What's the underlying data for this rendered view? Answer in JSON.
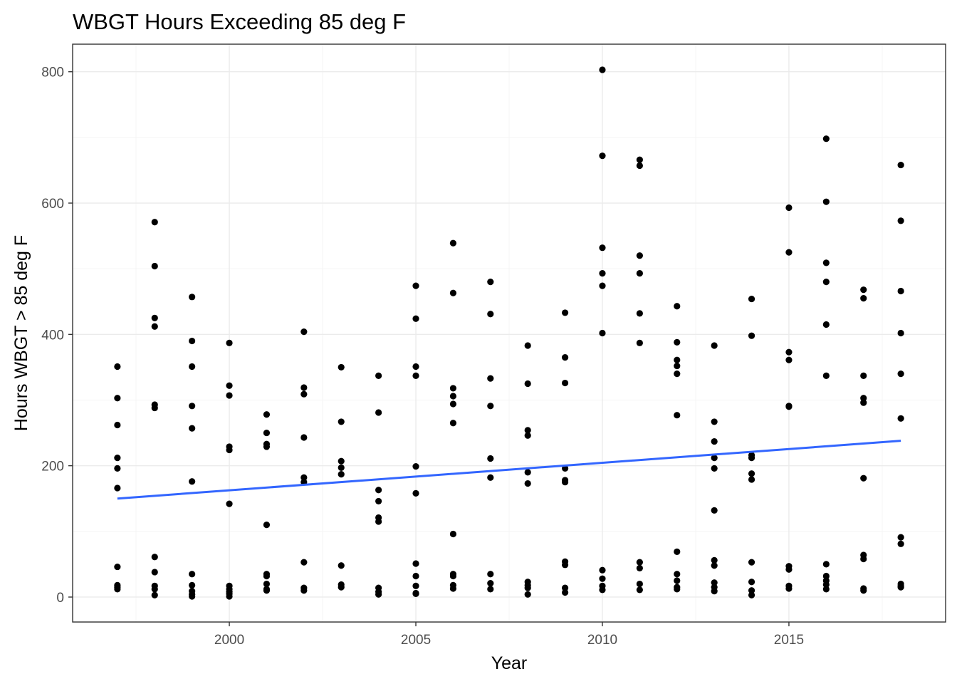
{
  "chart_data": {
    "type": "scatter",
    "title": "WBGT Hours Exceeding 85 deg F",
    "xlabel": "Year",
    "ylabel": "Hours WBGT > 85 deg F",
    "xlim": [
      1995.8,
      2019.2
    ],
    "ylim": [
      -38,
      842
    ],
    "x_ticks": [
      2000,
      2005,
      2010,
      2015
    ],
    "x_tick_labels": [
      "2000",
      "2005",
      "2010",
      "2015"
    ],
    "y_ticks": [
      0,
      200,
      400,
      600,
      800
    ],
    "y_tick_labels": [
      "0",
      "200",
      "400",
      "600",
      "800"
    ],
    "grid": true,
    "legend": "none",
    "colors": {
      "points": "#000000",
      "trend": "#3366ff",
      "grid_major": "#ebebeb",
      "grid_minor": "#f5f5f5",
      "panel_border": "#333333"
    },
    "points": [
      [
        1997,
        351
      ],
      [
        1997,
        303
      ],
      [
        1997,
        262
      ],
      [
        1997,
        212
      ],
      [
        1997,
        196
      ],
      [
        1997,
        166
      ],
      [
        1997,
        46
      ],
      [
        1997,
        18
      ],
      [
        1997,
        15
      ],
      [
        1997,
        12
      ],
      [
        1998,
        571
      ],
      [
        1998,
        504
      ],
      [
        1998,
        425
      ],
      [
        1998,
        412
      ],
      [
        1998,
        293
      ],
      [
        1998,
        288
      ],
      [
        1998,
        61
      ],
      [
        1998,
        38
      ],
      [
        1998,
        17
      ],
      [
        1998,
        12
      ],
      [
        1998,
        3
      ],
      [
        1999,
        457
      ],
      [
        1999,
        390
      ],
      [
        1999,
        351
      ],
      [
        1999,
        291
      ],
      [
        1999,
        257
      ],
      [
        1999,
        176
      ],
      [
        1999,
        35
      ],
      [
        1999,
        18
      ],
      [
        1999,
        9
      ],
      [
        1999,
        4
      ],
      [
        1999,
        1
      ],
      [
        2000,
        387
      ],
      [
        2000,
        322
      ],
      [
        2000,
        307
      ],
      [
        2000,
        229
      ],
      [
        2000,
        224
      ],
      [
        2000,
        142
      ],
      [
        2000,
        17
      ],
      [
        2000,
        12
      ],
      [
        2000,
        8
      ],
      [
        2000,
        5
      ],
      [
        2000,
        1
      ],
      [
        2001,
        278
      ],
      [
        2001,
        250
      ],
      [
        2001,
        233
      ],
      [
        2001,
        229
      ],
      [
        2001,
        110
      ],
      [
        2001,
        35
      ],
      [
        2001,
        32
      ],
      [
        2001,
        20
      ],
      [
        2001,
        12
      ],
      [
        2001,
        10
      ],
      [
        2002,
        404
      ],
      [
        2002,
        319
      ],
      [
        2002,
        309
      ],
      [
        2002,
        243
      ],
      [
        2002,
        182
      ],
      [
        2002,
        175
      ],
      [
        2002,
        53
      ],
      [
        2002,
        14
      ],
      [
        2002,
        10
      ],
      [
        2003,
        350
      ],
      [
        2003,
        267
      ],
      [
        2003,
        207
      ],
      [
        2003,
        197
      ],
      [
        2003,
        187
      ],
      [
        2003,
        48
      ],
      [
        2003,
        19
      ],
      [
        2003,
        15
      ],
      [
        2004,
        337
      ],
      [
        2004,
        281
      ],
      [
        2004,
        163
      ],
      [
        2004,
        146
      ],
      [
        2004,
        121
      ],
      [
        2004,
        115
      ],
      [
        2004,
        14
      ],
      [
        2004,
        8
      ],
      [
        2004,
        4
      ],
      [
        2005,
        474
      ],
      [
        2005,
        424
      ],
      [
        2005,
        351
      ],
      [
        2005,
        337
      ],
      [
        2005,
        199
      ],
      [
        2005,
        158
      ],
      [
        2005,
        51
      ],
      [
        2005,
        32
      ],
      [
        2005,
        17
      ],
      [
        2005,
        6
      ],
      [
        2005,
        5
      ],
      [
        2006,
        539
      ],
      [
        2006,
        463
      ],
      [
        2006,
        318
      ],
      [
        2006,
        306
      ],
      [
        2006,
        294
      ],
      [
        2006,
        265
      ],
      [
        2006,
        96
      ],
      [
        2006,
        35
      ],
      [
        2006,
        32
      ],
      [
        2006,
        18
      ],
      [
        2006,
        13
      ],
      [
        2007,
        480
      ],
      [
        2007,
        431
      ],
      [
        2007,
        333
      ],
      [
        2007,
        291
      ],
      [
        2007,
        211
      ],
      [
        2007,
        182
      ],
      [
        2007,
        35
      ],
      [
        2007,
        21
      ],
      [
        2007,
        12
      ],
      [
        2008,
        383
      ],
      [
        2008,
        325
      ],
      [
        2008,
        254
      ],
      [
        2008,
        246
      ],
      [
        2008,
        190
      ],
      [
        2008,
        173
      ],
      [
        2008,
        23
      ],
      [
        2008,
        18
      ],
      [
        2008,
        14
      ],
      [
        2008,
        4
      ],
      [
        2009,
        433
      ],
      [
        2009,
        365
      ],
      [
        2009,
        326
      ],
      [
        2009,
        196
      ],
      [
        2009,
        178
      ],
      [
        2009,
        175
      ],
      [
        2009,
        54
      ],
      [
        2009,
        49
      ],
      [
        2009,
        14
      ],
      [
        2009,
        7
      ],
      [
        2010,
        803
      ],
      [
        2010,
        672
      ],
      [
        2010,
        532
      ],
      [
        2010,
        493
      ],
      [
        2010,
        474
      ],
      [
        2010,
        402
      ],
      [
        2010,
        41
      ],
      [
        2010,
        28
      ],
      [
        2010,
        17
      ],
      [
        2010,
        11
      ],
      [
        2011,
        666
      ],
      [
        2011,
        657
      ],
      [
        2011,
        520
      ],
      [
        2011,
        493
      ],
      [
        2011,
        432
      ],
      [
        2011,
        387
      ],
      [
        2011,
        53
      ],
      [
        2011,
        44
      ],
      [
        2011,
        20
      ],
      [
        2011,
        11
      ],
      [
        2012,
        443
      ],
      [
        2012,
        388
      ],
      [
        2012,
        361
      ],
      [
        2012,
        352
      ],
      [
        2012,
        340
      ],
      [
        2012,
        277
      ],
      [
        2012,
        69
      ],
      [
        2012,
        35
      ],
      [
        2012,
        25
      ],
      [
        2012,
        15
      ],
      [
        2012,
        12
      ],
      [
        2013,
        383
      ],
      [
        2013,
        267
      ],
      [
        2013,
        237
      ],
      [
        2013,
        212
      ],
      [
        2013,
        196
      ],
      [
        2013,
        132
      ],
      [
        2013,
        56
      ],
      [
        2013,
        48
      ],
      [
        2013,
        22
      ],
      [
        2013,
        15
      ],
      [
        2013,
        9
      ],
      [
        2014,
        454
      ],
      [
        2014,
        398
      ],
      [
        2014,
        216
      ],
      [
        2014,
        212
      ],
      [
        2014,
        188
      ],
      [
        2014,
        179
      ],
      [
        2014,
        53
      ],
      [
        2014,
        23
      ],
      [
        2014,
        10
      ],
      [
        2014,
        3
      ],
      [
        2015,
        593
      ],
      [
        2015,
        525
      ],
      [
        2015,
        373
      ],
      [
        2015,
        361
      ],
      [
        2015,
        291
      ],
      [
        2015,
        290
      ],
      [
        2015,
        47
      ],
      [
        2015,
        42
      ],
      [
        2015,
        17
      ],
      [
        2015,
        13
      ],
      [
        2016,
        698
      ],
      [
        2016,
        602
      ],
      [
        2016,
        509
      ],
      [
        2016,
        480
      ],
      [
        2016,
        415
      ],
      [
        2016,
        337
      ],
      [
        2016,
        50
      ],
      [
        2016,
        32
      ],
      [
        2016,
        25
      ],
      [
        2016,
        19
      ],
      [
        2016,
        12
      ],
      [
        2017,
        468
      ],
      [
        2017,
        455
      ],
      [
        2017,
        337
      ],
      [
        2017,
        303
      ],
      [
        2017,
        296
      ],
      [
        2017,
        181
      ],
      [
        2017,
        64
      ],
      [
        2017,
        58
      ],
      [
        2017,
        13
      ],
      [
        2017,
        10
      ],
      [
        2018,
        658
      ],
      [
        2018,
        573
      ],
      [
        2018,
        466
      ],
      [
        2018,
        402
      ],
      [
        2018,
        340
      ],
      [
        2018,
        272
      ],
      [
        2018,
        91
      ],
      [
        2018,
        81
      ],
      [
        2018,
        20
      ],
      [
        2018,
        17
      ],
      [
        2018,
        15
      ]
    ],
    "trend_line": {
      "x": [
        1997,
        2018
      ],
      "y": [
        150,
        238
      ]
    }
  }
}
